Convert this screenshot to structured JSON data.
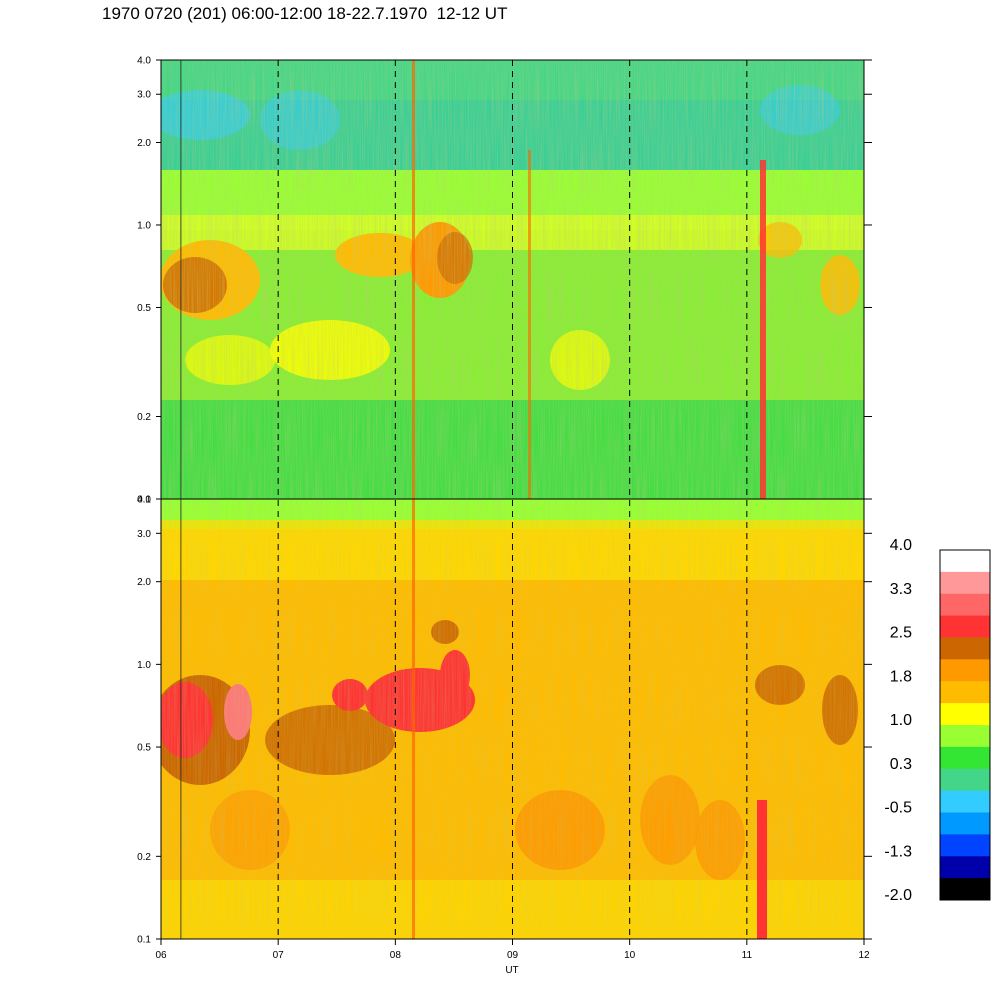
{
  "title": "1970 0720 (201) 06:00-12:00 18-22.7.1970  12-12 UT",
  "chart_data": {
    "type": "heatmap",
    "title": "1970 0720 (201) 06:00-12:00 18-22.7.1970  12-12 UT",
    "xlabel": "UT",
    "x_ticks": [
      "06",
      "07",
      "08",
      "09",
      "10",
      "11",
      "12"
    ],
    "x_range": [
      6,
      12
    ],
    "y_scale": "log",
    "y_range": [
      0.1,
      4.0
    ],
    "y_ticks": [
      "0.1",
      "0.2",
      "0.5",
      "1.0",
      "2.0",
      "3.0",
      "4.0"
    ],
    "y_tick_values": [
      0.1,
      0.2,
      0.5,
      1.0,
      2.0,
      3.0,
      4.0
    ],
    "dashed_hour_markers": [
      7,
      8,
      9,
      10,
      11
    ],
    "panels": [
      {
        "name": "upper",
        "dominant_levels": "0.3 to 1.8",
        "enhancement_band": [
          0.5,
          1.0
        ]
      },
      {
        "name": "lower",
        "dominant_levels": "1.0 to 2.5",
        "enhancement_band": [
          0.4,
          1.0
        ]
      }
    ],
    "colorbar": {
      "labels": [
        "4.0",
        "3.3",
        "2.5",
        "1.8",
        "1.0",
        "0.3",
        "-0.5",
        "-1.3",
        "-2.0"
      ],
      "colors": [
        "#ffffff",
        "#ff9999",
        "#ff6666",
        "#ff3333",
        "#cc6600",
        "#ff9900",
        "#ffbb00",
        "#ffff00",
        "#99ff33",
        "#33e633",
        "#44d688",
        "#33ccff",
        "#0099ff",
        "#0044ff",
        "#0000aa",
        "#000000"
      ]
    },
    "grid": false,
    "legend": "right (colorbar)"
  }
}
